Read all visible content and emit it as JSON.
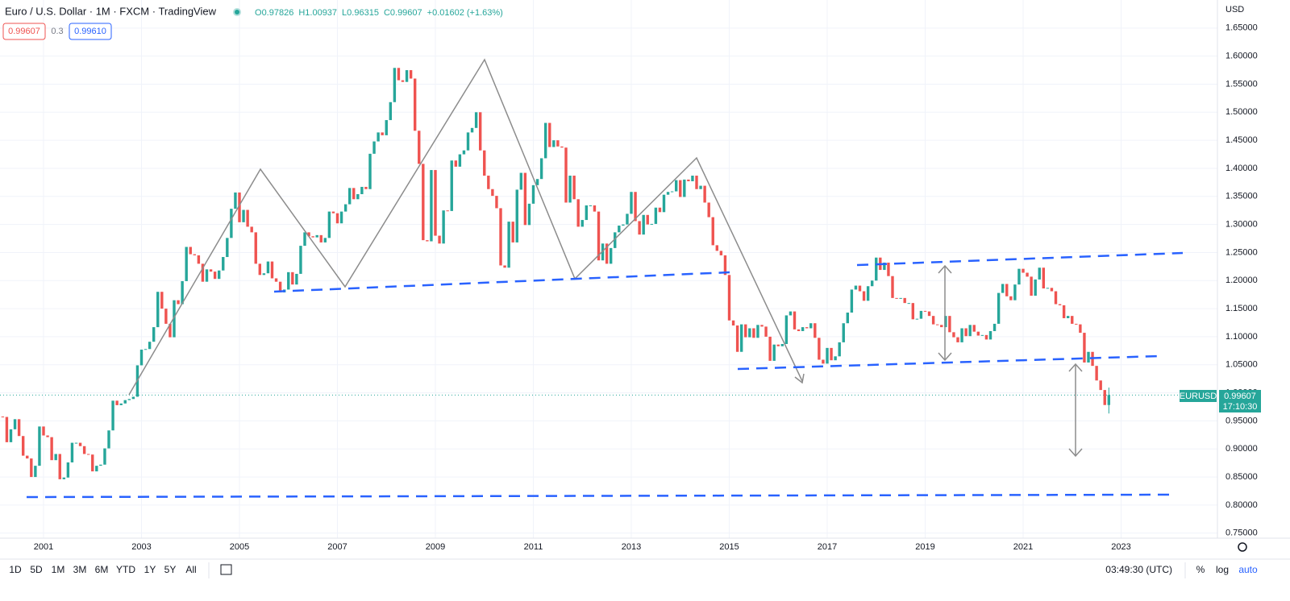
{
  "chart_data": {
    "type": "candlestick",
    "title": "Euro / U.S. Dollar · 1M · FXCM · TradingView",
    "ohlc": {
      "labels": [
        "O",
        "H",
        "L",
        "C"
      ],
      "values": [
        0.97826,
        1.00937,
        0.96315,
        0.99607
      ]
    },
    "change": "+0.01602 (+1.63%)",
    "quote": {
      "bid": 0.99607,
      "spread": 0.3,
      "ask": {
        "value": 0.9961,
        "label": "0.99610"
      }
    },
    "currency": "USD",
    "countdown": "17:10:30",
    "up_color": "#26a69a",
    "down_color": "#ef5350",
    "grid": true,
    "series": [
      {
        "name": "EURUSD",
        "values": [
          0.957,
          0.912,
          0.935,
          0.953,
          0.923,
          0.888,
          0.883,
          0.85,
          0.87,
          0.94,
          0.924,
          0.921,
          0.88,
          0.891,
          0.846,
          0.849,
          0.876,
          0.911,
          0.911,
          0.905,
          0.891,
          0.89,
          0.86,
          0.87,
          0.872,
          0.901,
          0.933,
          0.986,
          0.978,
          0.981,
          0.987,
          0.989,
          0.993,
          1.049,
          1.077,
          1.078,
          1.091,
          1.117,
          1.18,
          1.15,
          1.123,
          1.099,
          1.165,
          1.158,
          1.199,
          1.26,
          1.247,
          1.245,
          1.23,
          1.198,
          1.22,
          1.216,
          1.203,
          1.218,
          1.242,
          1.276,
          1.328,
          1.357,
          1.304,
          1.326,
          1.296,
          1.286,
          1.23,
          1.21,
          1.213,
          1.234,
          1.204,
          1.198,
          1.179,
          1.184,
          1.215,
          1.193,
          1.212,
          1.262,
          1.286,
          1.279,
          1.277,
          1.281,
          1.268,
          1.276,
          1.323,
          1.32,
          1.302,
          1.323,
          1.336,
          1.365,
          1.345,
          1.354,
          1.367,
          1.363,
          1.426,
          1.448,
          1.464,
          1.459,
          1.486,
          1.518,
          1.579,
          1.557,
          1.554,
          1.575,
          1.56,
          1.467,
          1.408,
          1.272,
          1.27,
          1.397,
          1.28,
          1.266,
          1.325,
          1.324,
          1.414,
          1.403,
          1.425,
          1.432,
          1.464,
          1.472,
          1.5,
          1.432,
          1.387,
          1.363,
          1.351,
          1.329,
          1.227,
          1.223,
          1.305,
          1.268,
          1.362,
          1.392,
          1.299,
          1.337,
          1.37,
          1.381,
          1.418,
          1.481,
          1.438,
          1.45,
          1.439,
          1.437,
          1.339,
          1.387,
          1.345,
          1.296,
          1.308,
          1.334,
          1.334,
          1.323,
          1.236,
          1.266,
          1.23,
          1.258,
          1.286,
          1.298,
          1.3,
          1.319,
          1.358,
          1.306,
          1.282,
          1.317,
          1.3,
          1.301,
          1.33,
          1.322,
          1.353,
          1.358,
          1.359,
          1.379,
          1.349,
          1.38,
          1.377,
          1.387,
          1.363,
          1.369,
          1.339,
          1.313,
          1.263,
          1.253,
          1.245,
          1.21,
          1.129,
          1.12,
          1.073,
          1.122,
          1.099,
          1.115,
          1.098,
          1.121,
          1.118,
          1.1,
          1.057,
          1.086,
          1.083,
          1.087,
          1.138,
          1.145,
          1.113,
          1.11,
          1.117,
          1.115,
          1.124,
          1.098,
          1.059,
          1.052,
          1.08,
          1.058,
          1.065,
          1.09,
          1.124,
          1.143,
          1.184,
          1.191,
          1.181,
          1.164,
          1.19,
          1.2,
          1.241,
          1.219,
          1.232,
          1.208,
          1.169,
          1.168,
          1.169,
          1.16,
          1.16,
          1.131,
          1.132,
          1.146,
          1.145,
          1.137,
          1.122,
          1.121,
          1.117,
          1.137,
          1.108,
          1.099,
          1.09,
          1.115,
          1.101,
          1.121,
          1.109,
          1.102,
          1.103,
          1.095,
          1.11,
          1.123,
          1.178,
          1.194,
          1.172,
          1.165,
          1.193,
          1.221,
          1.214,
          1.207,
          1.173,
          1.202,
          1.223,
          1.186,
          1.187,
          1.181,
          1.158,
          1.156,
          1.133,
          1.137,
          1.123,
          1.122,
          1.107,
          1.054,
          1.073,
          1.048,
          1.022,
          1.005,
          0.97826,
          0.99607
        ]
      }
    ],
    "ylim": [
      0.741,
      1.7
    ],
    "yticks": [
      {
        "value": 0.75,
        "label": "0.75000"
      },
      {
        "value": 0.8,
        "label": "0.80000"
      },
      {
        "value": 0.85,
        "label": "0.85000"
      },
      {
        "value": 0.9,
        "label": "0.90000"
      },
      {
        "value": 0.95,
        "label": "0.95000"
      },
      {
        "value": 1.0,
        "label": "1.00000"
      },
      {
        "value": 1.05,
        "label": "1.05000"
      },
      {
        "value": 1.1,
        "label": "1.10000"
      },
      {
        "value": 1.15,
        "label": "1.15000"
      },
      {
        "value": 1.2,
        "label": "1.20000"
      },
      {
        "value": 1.25,
        "label": "1.25000"
      },
      {
        "value": 1.3,
        "label": "1.30000"
      },
      {
        "value": 1.35,
        "label": "1.35000"
      },
      {
        "value": 1.4,
        "label": "1.40000"
      },
      {
        "value": 1.45,
        "label": "1.45000"
      },
      {
        "value": 1.5,
        "label": "1.50000"
      },
      {
        "value": 1.55,
        "label": "1.55000"
      },
      {
        "value": 1.6,
        "label": "1.60000"
      },
      {
        "value": 1.65,
        "label": "1.65000"
      }
    ],
    "xticks": [
      2001,
      2003,
      2005,
      2007,
      2009,
      2011,
      2013,
      2015,
      2017,
      2019,
      2021,
      2023
    ]
  },
  "toolbar": {
    "timeframes": [
      "1D",
      "5D",
      "1M",
      "3M",
      "6M",
      "YTD",
      "1Y",
      "5Y",
      "All"
    ],
    "clock": "03:49:30 (UTC)",
    "scale_options": [
      "%",
      "log",
      "auto"
    ]
  }
}
